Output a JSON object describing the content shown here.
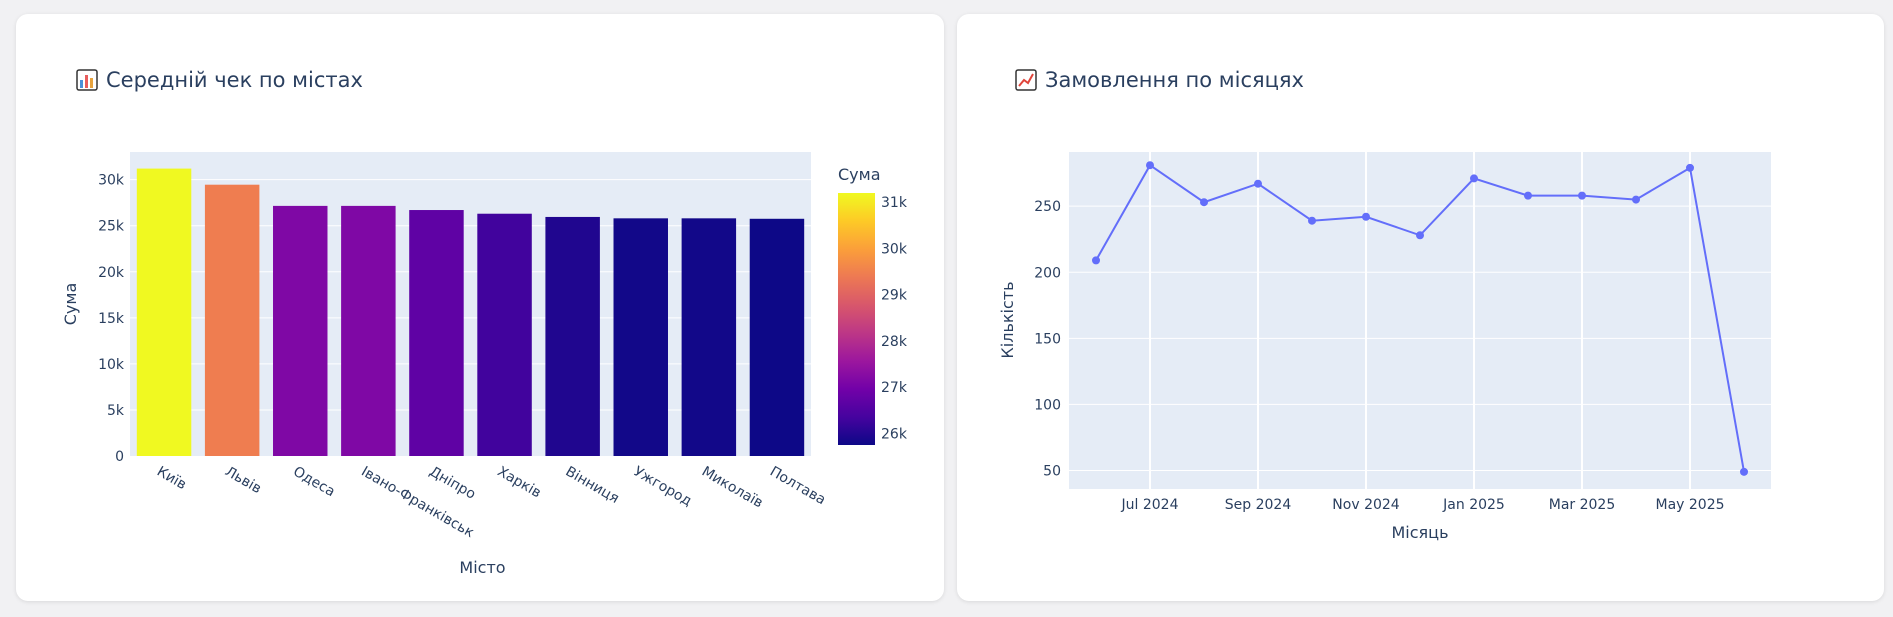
{
  "left_card": {
    "title": "Середній чек по містах",
    "icon": "bar-chart-icon"
  },
  "right_card": {
    "title": "Замовлення по місяцях",
    "icon": "line-chart-icon"
  },
  "chart_data": [
    {
      "type": "bar",
      "xlabel": "Місто",
      "ylabel": "Сума",
      "ylim": [
        0,
        33000
      ],
      "yticks": [
        0,
        5000,
        10000,
        15000,
        20000,
        25000,
        30000
      ],
      "ytick_labels": [
        "0",
        "5k",
        "10k",
        "15k",
        "20k",
        "25k",
        "30k"
      ],
      "categories": [
        "Київ",
        "Львів",
        "Одеса",
        "Івано-Франківськ",
        "Дніпро",
        "Харків",
        "Вінниця",
        "Ужгород",
        "Миколаїв",
        "Полтава"
      ],
      "values": [
        31200,
        29450,
        27150,
        27150,
        26700,
        26300,
        25950,
        25800,
        25800,
        25750
      ],
      "colorbar": {
        "title": "Сума",
        "range": [
          25750,
          31200
        ],
        "ticks": [
          26000,
          27000,
          28000,
          29000,
          30000,
          31000
        ],
        "tick_labels": [
          "26k",
          "27k",
          "28k",
          "29k",
          "30k",
          "31k"
        ],
        "colorscale": [
          "#0d0887",
          "#46039f",
          "#7201a8",
          "#9c179e",
          "#bd3786",
          "#d8576b",
          "#ed7953",
          "#fb9f3a",
          "#fdca26",
          "#f0f921"
        ]
      },
      "grid": true,
      "background": "#e5ecf6"
    },
    {
      "type": "line",
      "xlabel": "Місяць",
      "ylabel": "Кількість",
      "x": [
        "2024-06",
        "2024-07",
        "2024-08",
        "2024-09",
        "2024-10",
        "2024-11",
        "2024-12",
        "2025-01",
        "2025-02",
        "2025-03",
        "2025-04",
        "2025-05",
        "2025-06"
      ],
      "y": [
        209,
        281,
        253,
        267,
        239,
        242,
        228,
        271,
        258,
        258,
        255,
        279,
        49
      ],
      "ylim": [
        36,
        291
      ],
      "yticks": [
        50,
        100,
        150,
        200,
        250
      ],
      "xticks": [
        1,
        3,
        5,
        7,
        9,
        11
      ],
      "xtick_labels": [
        "Jul 2024",
        "Sep 2024",
        "Nov 2024",
        "Jan 2025",
        "Mar 2025",
        "May 2025"
      ],
      "line_color": "#636efa",
      "grid": true,
      "background": "#e5ecf6"
    }
  ]
}
